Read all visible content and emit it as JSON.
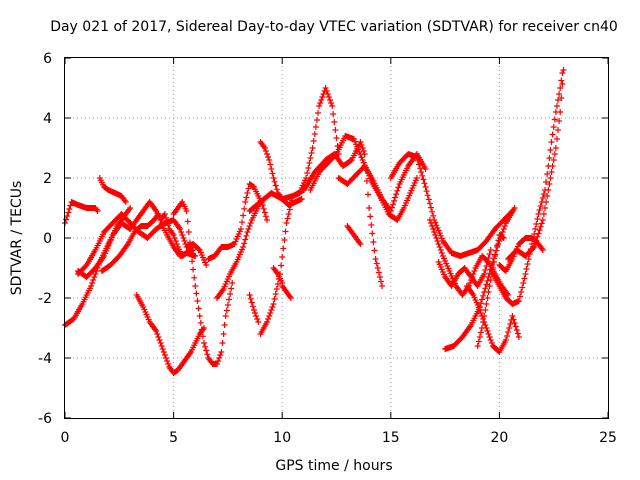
{
  "chart_data": {
    "type": "scatter",
    "title": "Day 021 of 2017, Sidereal Day-to-day VTEC variation (SDTVAR) for receiver cn40",
    "xlabel": "GPS time / hours",
    "ylabel": "SDTVAR / TECUs",
    "xlim": [
      0,
      25
    ],
    "ylim": [
      -6,
      6
    ],
    "xticks": [
      0,
      5,
      10,
      15,
      20,
      25
    ],
    "yticks": [
      -6,
      -4,
      -2,
      0,
      2,
      4,
      6
    ],
    "xtick_labels": [
      "0",
      "5",
      "10",
      "15",
      "20",
      "25"
    ],
    "ytick_labels": [
      "-6",
      "-4",
      "-2",
      "0",
      "2",
      "4",
      "6"
    ],
    "grid": true,
    "marker": "+",
    "color": "#ff0000",
    "series": [
      {
        "x": [
          0.0,
          0.3,
          0.6,
          1.0,
          1.4,
          1.5
        ],
        "y": [
          0.5,
          1.2,
          1.1,
          1.0,
          1.0,
          0.9
        ]
      },
      {
        "x": [
          0.0,
          0.4,
          0.8,
          1.2,
          1.6,
          2.0,
          2.4,
          2.8,
          3.0
        ],
        "y": [
          -2.9,
          -2.7,
          -2.2,
          -1.6,
          -0.8,
          -0.2,
          0.4,
          0.8,
          1.0
        ]
      },
      {
        "x": [
          0.6,
          1.0,
          1.4,
          1.8,
          2.2,
          2.6,
          3.0,
          3.3,
          3.6,
          3.9,
          4.2,
          4.4,
          4.6,
          4.8,
          5.0,
          5.2,
          5.4,
          5.6,
          5.9
        ],
        "y": [
          -1.1,
          -1.3,
          -1.0,
          -0.6,
          0.1,
          0.5,
          0.3,
          0.6,
          0.9,
          1.2,
          0.9,
          0.6,
          0.8,
          0.3,
          0.1,
          -0.3,
          -0.6,
          -0.5,
          -0.4
        ]
      },
      {
        "x": [
          0.6,
          1.0,
          1.4,
          1.8,
          2.2,
          2.6,
          3.0,
          3.4,
          3.8,
          4.2,
          4.6,
          5.0,
          5.3,
          5.6,
          5.9,
          6.2,
          6.5
        ],
        "y": [
          -1.2,
          -0.9,
          -0.4,
          0.2,
          0.5,
          0.8,
          0.5,
          0.2,
          0.0,
          0.3,
          0.5,
          0.6,
          0.3,
          -0.3,
          -0.2,
          -0.4,
          -0.9
        ]
      },
      {
        "x": [
          1.6,
          1.8,
          2.0,
          2.3,
          2.6,
          2.8
        ],
        "y": [
          2.0,
          1.7,
          1.6,
          1.5,
          1.4,
          1.2
        ]
      },
      {
        "x": [
          1.7,
          2.1,
          2.5,
          2.9,
          3.2,
          3.5,
          3.8,
          4.1,
          4.3,
          4.5,
          4.7,
          5.0,
          5.3,
          5.6,
          6.0
        ],
        "y": [
          -1.1,
          -0.9,
          -0.6,
          -0.2,
          0.2,
          0.4,
          0.4,
          0.6,
          0.8,
          0.4,
          0.1,
          -0.3,
          -0.6,
          -0.5,
          -0.6
        ]
      },
      {
        "x": [
          3.3,
          3.6,
          3.9,
          4.2,
          4.4,
          4.6,
          4.8,
          5.0,
          5.2,
          5.4,
          5.6,
          5.8,
          6.0,
          6.2,
          6.4
        ],
        "y": [
          -1.9,
          -2.3,
          -2.8,
          -3.1,
          -3.5,
          -3.9,
          -4.3,
          -4.5,
          -4.4,
          -4.2,
          -4.0,
          -3.8,
          -3.5,
          -3.2,
          -3.0
        ]
      },
      {
        "x": [
          5.0,
          5.2,
          5.4,
          5.6,
          5.8,
          6.0,
          6.2,
          6.4,
          6.6,
          6.8,
          7.0,
          7.2,
          7.4,
          7.7
        ],
        "y": [
          0.8,
          1.0,
          1.2,
          0.9,
          -0.5,
          -1.6,
          -2.6,
          -3.5,
          -4.0,
          -4.2,
          -4.2,
          -3.8,
          -2.6,
          -1.5
        ]
      },
      {
        "x": [
          6.6,
          6.9,
          7.2,
          7.5,
          7.8,
          8.1,
          8.3,
          8.5,
          8.7,
          8.9,
          9.1,
          9.3
        ],
        "y": [
          -0.7,
          -0.6,
          -0.3,
          -0.3,
          -0.2,
          0.3,
          1.2,
          1.8,
          1.7,
          1.4,
          1.1,
          0.6
        ]
      },
      {
        "x": [
          7.0,
          7.3,
          7.6,
          7.9,
          8.2,
          8.4,
          8.6,
          8.8,
          9.0
        ],
        "y": [
          -2.0,
          -1.7,
          -1.2,
          -0.8,
          -0.3,
          0.2,
          0.6,
          0.9,
          1.2
        ]
      },
      {
        "x": [
          8.5,
          8.7,
          8.9
        ],
        "y": [
          -1.9,
          -2.4,
          -2.8
        ]
      },
      {
        "x": [
          9.0,
          9.3,
          9.6,
          9.9,
          10.2,
          10.5,
          10.8,
          11.1,
          11.4,
          11.7,
          12.0,
          12.3,
          12.6
        ],
        "y": [
          -3.2,
          -2.8,
          -2.2,
          -1.2,
          0.5,
          1.4,
          1.5,
          2.0,
          3.0,
          4.4,
          5.0,
          4.4,
          2.8
        ]
      },
      {
        "x": [
          9.0,
          9.2,
          9.4,
          9.6,
          9.8,
          10.0,
          10.3,
          10.6,
          10.9
        ],
        "y": [
          3.2,
          3.0,
          2.6,
          2.0,
          1.5,
          1.3,
          1.1,
          1.2,
          1.3
        ]
      },
      {
        "x": [
          9.6,
          9.8,
          10.0
        ],
        "y": [
          -1.0,
          -1.2,
          -1.5
        ]
      },
      {
        "x": [
          10.0,
          10.2,
          10.4
        ],
        "y": [
          -1.6,
          -1.8,
          -2.0
        ]
      },
      {
        "x": [
          8.5,
          9.0,
          9.5,
          10.0,
          10.5,
          11.0,
          11.5,
          12.0,
          12.4,
          12.8,
          13.2,
          13.6,
          13.8,
          14.0,
          14.3,
          14.6
        ],
        "y": [
          0.9,
          1.2,
          1.5,
          1.3,
          1.4,
          1.6,
          2.2,
          2.6,
          2.8,
          2.4,
          2.6,
          3.2,
          2.8,
          1.0,
          -0.7,
          -1.6
        ]
      },
      {
        "x": [
          11.3,
          11.7,
          12.1,
          12.5,
          12.9,
          13.3,
          13.7,
          14.1,
          14.5,
          14.9,
          15.3,
          15.6,
          15.9,
          16.2
        ],
        "y": [
          1.6,
          2.2,
          2.5,
          2.8,
          3.4,
          3.3,
          2.6,
          1.9,
          1.4,
          0.8,
          0.6,
          1.0,
          1.5,
          2.0
        ]
      },
      {
        "x": [
          12.6,
          13.0,
          13.4,
          13.8,
          14.2,
          14.6,
          15.0,
          15.4,
          15.8,
          16.2,
          16.6
        ],
        "y": [
          2.0,
          1.8,
          2.1,
          2.4,
          1.9,
          1.3,
          0.9,
          1.8,
          2.4,
          2.8,
          2.3
        ]
      },
      {
        "x": [
          13.0,
          13.3,
          13.6
        ],
        "y": [
          0.4,
          0.1,
          -0.2
        ]
      },
      {
        "x": [
          15.0,
          15.4,
          15.8,
          16.2,
          16.6,
          17.0,
          17.4,
          17.8,
          18.2,
          18.6,
          19.0,
          19.4,
          19.8,
          20.2,
          20.6
        ],
        "y": [
          2.0,
          2.5,
          2.8,
          2.7,
          1.7,
          0.6,
          -0.1,
          -0.5,
          -0.6,
          -0.5,
          -0.4,
          -0.1,
          0.3,
          0.6,
          0.9
        ]
      },
      {
        "x": [
          16.8,
          17.1,
          17.4,
          17.7,
          18.0,
          18.3,
          18.6,
          18.9,
          19.2,
          19.5,
          19.8,
          20.1,
          20.4
        ],
        "y": [
          0.6,
          0.0,
          -0.6,
          -1.1,
          -1.6,
          -1.9,
          -1.6,
          -1.0,
          -0.6,
          -0.8,
          -1.2,
          -1.6,
          -1.9
        ]
      },
      {
        "x": [
          17.2,
          17.5,
          17.8,
          18.1,
          18.4,
          18.7,
          19.0,
          19.3,
          19.6
        ],
        "y": [
          -0.8,
          -1.3,
          -1.6,
          -1.2,
          -1.0,
          -1.3,
          -1.6,
          -1.2,
          -0.4
        ]
      },
      {
        "x": [
          17.5,
          17.9,
          18.3,
          18.7,
          19.1,
          19.5,
          19.9,
          20.3,
          20.7
        ],
        "y": [
          -3.7,
          -3.6,
          -3.3,
          -2.9,
          -2.3,
          -1.3,
          -0.3,
          0.5,
          1.0
        ]
      },
      {
        "x": [
          18.5,
          18.8,
          19.1,
          19.4,
          19.7,
          20.0,
          20.3,
          20.6,
          20.9
        ],
        "y": [
          -1.6,
          -1.9,
          -2.4,
          -3.0,
          -3.6,
          -3.8,
          -3.4,
          -2.6,
          -3.3
        ]
      },
      {
        "x": [
          19.0,
          19.2,
          19.4,
          19.6,
          19.8,
          20.0,
          20.2
        ],
        "y": [
          -3.6,
          -3.0,
          -2.2,
          -1.4,
          -0.6,
          0.1,
          0.0
        ]
      },
      {
        "x": [
          19.7,
          20.0,
          20.3,
          20.6,
          20.9,
          21.2,
          21.5,
          21.8,
          22.1,
          22.4,
          22.6,
          22.8,
          22.9
        ],
        "y": [
          -1.2,
          -1.6,
          -2.0,
          -2.2,
          -2.1,
          -1.2,
          -0.2,
          0.8,
          1.6,
          3.2,
          4.2,
          5.0,
          5.5
        ]
      },
      {
        "x": [
          20.4,
          20.8,
          21.2,
          21.6,
          22.0,
          22.3,
          22.6,
          22.8,
          22.95
        ],
        "y": [
          -0.7,
          -0.4,
          -0.6,
          -0.3,
          0.6,
          1.8,
          3.0,
          4.2,
          5.6
        ]
      },
      {
        "x": [
          20.0,
          20.3,
          20.6,
          20.9,
          21.2,
          21.5,
          21.8,
          22.0
        ],
        "y": [
          -0.9,
          -1.1,
          -0.7,
          -0.2,
          0.0,
          0.0,
          -0.2,
          -0.4
        ]
      }
    ]
  }
}
